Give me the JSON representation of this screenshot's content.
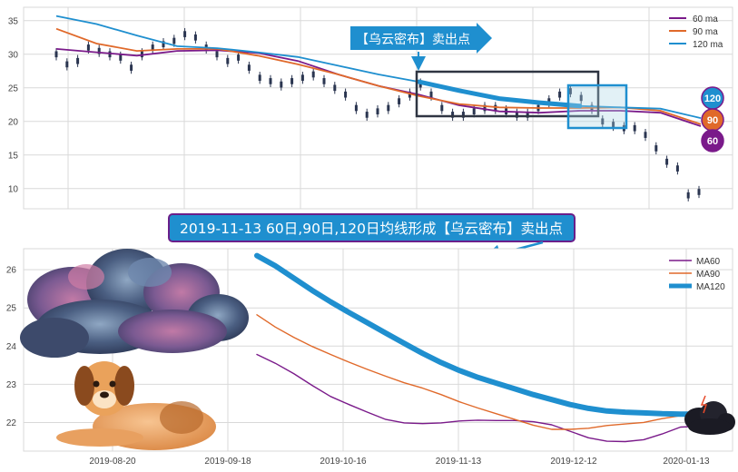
{
  "top_panel": {
    "callout": "【乌云密布】卖出点",
    "badges": [
      {
        "label": "120",
        "color": "#1f8fcf"
      },
      {
        "label": "90",
        "color": "#e0692a"
      },
      {
        "label": "60",
        "color": "#7a1a8a"
      }
    ]
  },
  "banner": {
    "text": "2019-11-13 60日,90日,120日均线形成【乌云密布】卖出点",
    "bg": "#1f8fcf",
    "border": "#6a1f8a"
  },
  "colors": {
    "ma60": "#7a1a8a",
    "ma90": "#e0692a",
    "ma120": "#1f8fcf",
    "candle": "#2a3550",
    "grid": "#d9d9d9"
  },
  "chart_data": [
    {
      "type": "line",
      "title": "",
      "ylim": [
        7,
        37
      ],
      "yticks": [
        "10",
        "15",
        "20",
        "25",
        "30",
        "35"
      ],
      "legend_position": "top-right",
      "grid": true,
      "series": [
        {
          "name": "60 ma",
          "values": [
            30.8,
            30.3,
            29.8,
            30.5,
            30.6,
            30.2,
            29.0,
            27.0,
            25.3,
            24.0,
            22.4,
            21.5,
            21.3,
            21.6,
            21.6,
            21.3,
            19.3
          ]
        },
        {
          "name": "90 ma",
          "values": [
            33.8,
            31.6,
            30.5,
            30.8,
            30.8,
            29.8,
            28.5,
            27.0,
            25.3,
            23.8,
            22.6,
            22.1,
            22.0,
            22.0,
            22.1,
            21.6,
            19.6
          ]
        },
        {
          "name": "120 ma",
          "values": [
            35.7,
            34.5,
            32.8,
            31.2,
            30.9,
            30.3,
            29.6,
            28.3,
            27.0,
            25.9,
            24.6,
            23.4,
            22.8,
            22.3,
            22.1,
            21.9,
            20.5
          ]
        }
      ],
      "price": [
        30,
        28.5,
        29,
        31,
        30.5,
        30,
        29.5,
        28,
        30,
        31,
        31.5,
        32,
        33,
        32.5,
        31,
        30,
        29,
        29.5,
        28,
        26.5,
        26,
        25.5,
        26,
        26.5,
        27,
        26,
        25,
        24,
        22,
        21,
        21.5,
        22,
        23,
        24,
        25.5,
        24,
        22,
        21,
        21,
        21.5,
        22,
        22,
        21.5,
        21,
        21,
        22,
        23,
        24,
        24.5,
        23.5,
        22,
        20,
        19.5,
        19,
        19,
        18,
        16,
        14,
        13,
        9,
        9.5
      ],
      "price_y_range": [
        8,
        34
      ]
    },
    {
      "type": "line",
      "title": "",
      "x_ticks": [
        "2019-08-20",
        "2019-09-18",
        "2019-10-16",
        "2019-11-13",
        "2019-12-12",
        "2020-01-13"
      ],
      "yticks": [
        "22",
        "23",
        "24",
        "25",
        "26"
      ],
      "ylim": [
        21.25,
        26.55
      ],
      "legend_position": "top-right",
      "grid": true,
      "series": [
        {
          "name": "MA60",
          "values": [
            23.78,
            23.55,
            23.28,
            22.97,
            22.68,
            22.47,
            22.27,
            22.08,
            21.99,
            21.97,
            21.99,
            22.04,
            22.06,
            22.05,
            22.05,
            22.02,
            21.94,
            21.77,
            21.6,
            21.51,
            21.5,
            21.55,
            21.7,
            21.88,
            21.9
          ]
        },
        {
          "name": "MA90",
          "values": [
            24.82,
            24.5,
            24.23,
            23.99,
            23.78,
            23.58,
            23.39,
            23.21,
            23.04,
            22.9,
            22.73,
            22.54,
            22.38,
            22.23,
            22.08,
            21.93,
            21.82,
            21.82,
            21.85,
            21.92,
            21.96,
            22.0,
            22.1,
            22.18,
            22.2
          ]
        },
        {
          "name": "MA120",
          "values": [
            26.37,
            26.1,
            25.78,
            25.46,
            25.16,
            24.88,
            24.61,
            24.34,
            24.07,
            23.81,
            23.57,
            23.36,
            23.18,
            23.03,
            22.88,
            22.73,
            22.6,
            22.47,
            22.37,
            22.3,
            22.27,
            22.25,
            22.23,
            22.22,
            22.22
          ]
        }
      ]
    }
  ]
}
